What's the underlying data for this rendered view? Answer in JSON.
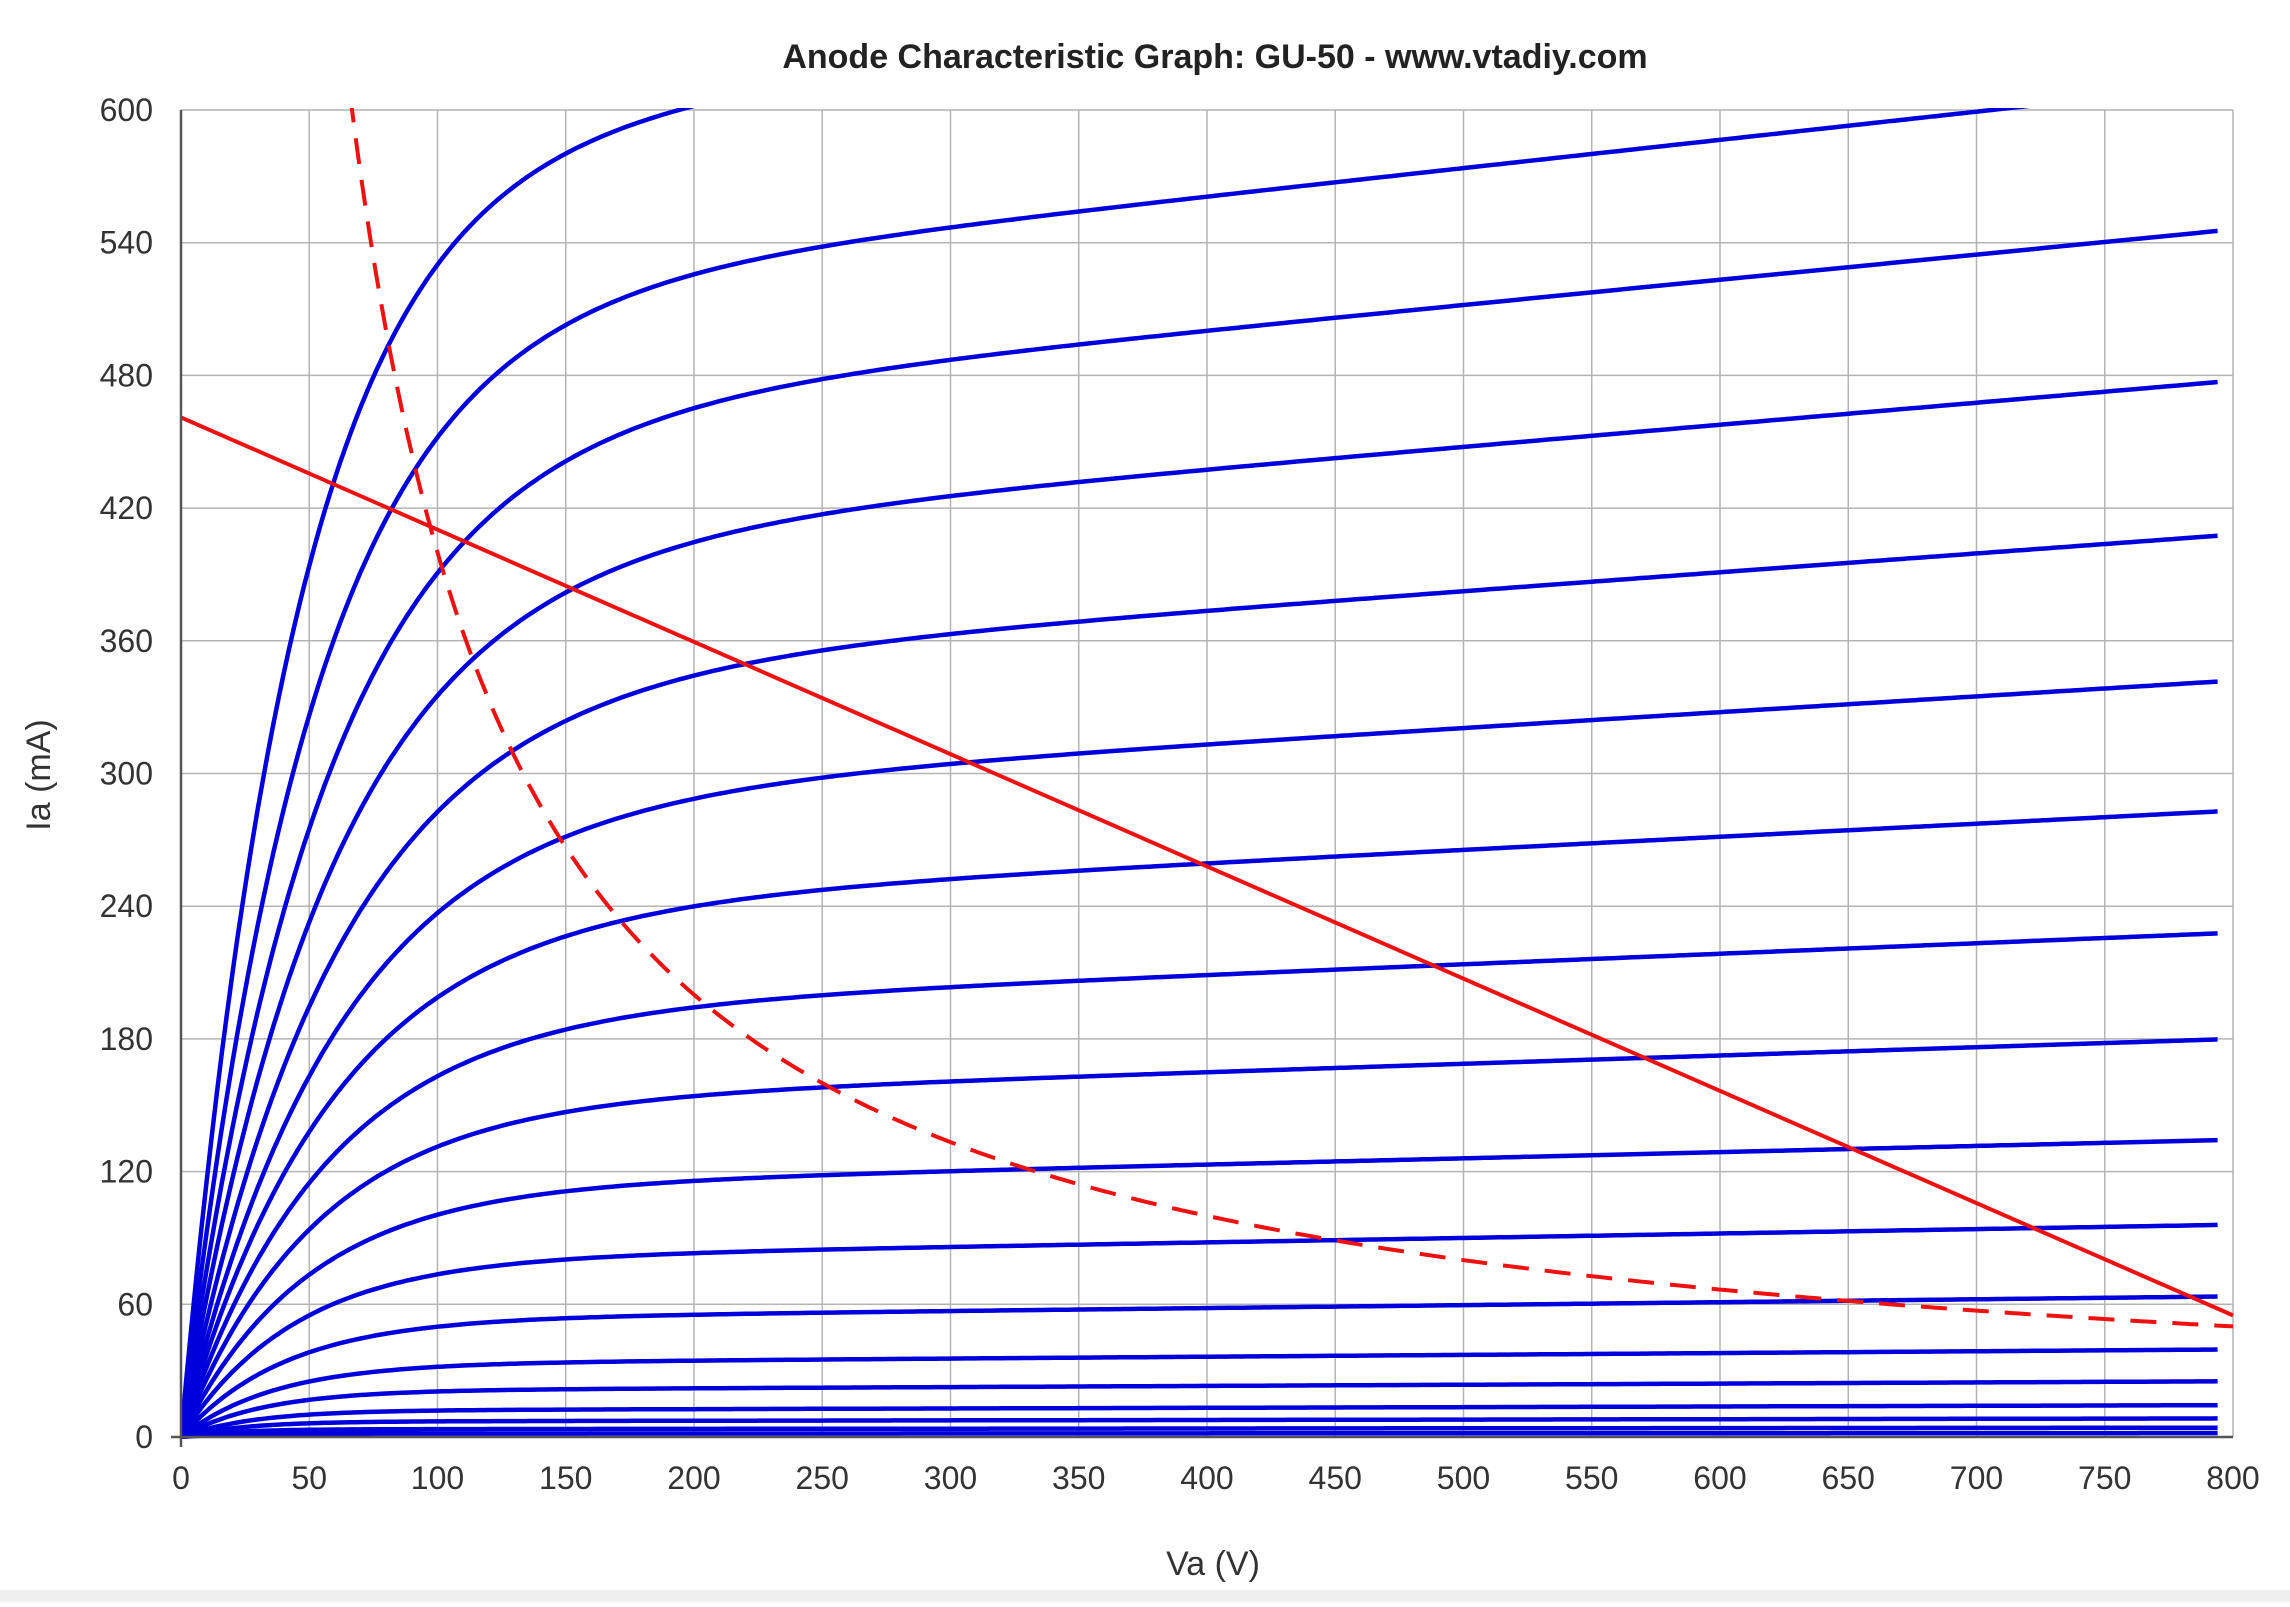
{
  "chart_data": {
    "type": "line",
    "title": "Anode Characteristic Graph: GU-50 - www.vtadiy.com",
    "xlabel": "Va (V)",
    "ylabel": "Ia (mA)",
    "xlim": [
      0,
      800
    ],
    "ylim": [
      0,
      600
    ],
    "xticks": [
      0,
      50,
      100,
      150,
      200,
      250,
      300,
      350,
      400,
      450,
      500,
      550,
      600,
      650,
      700,
      750,
      800
    ],
    "yticks": [
      0,
      60,
      120,
      180,
      240,
      300,
      360,
      420,
      480,
      540,
      600
    ],
    "grid": true,
    "colors": {
      "curves": "#0000dd",
      "load_line": "#ee1111",
      "dissipation": "#ee1111",
      "grid": "#b4b4b4",
      "axis": "#555555"
    },
    "curve_slope": 0.00025,
    "curves": [
      {
        "sat": 580,
        "k": 45
      },
      {
        "sat": 510,
        "k": 50
      },
      {
        "sat": 455,
        "k": 55
      },
      {
        "sat": 398,
        "k": 58
      },
      {
        "sat": 340,
        "k": 60
      },
      {
        "sat": 285,
        "k": 60
      },
      {
        "sat": 236,
        "k": 58
      },
      {
        "sat": 190,
        "k": 55
      },
      {
        "sat": 150,
        "k": 52
      },
      {
        "sat": 112,
        "k": 48
      },
      {
        "sat": 80,
        "k": 44
      },
      {
        "sat": 53,
        "k": 40
      },
      {
        "sat": 33,
        "k": 36
      },
      {
        "sat": 21,
        "k": 32
      },
      {
        "sat": 12,
        "k": 28
      },
      {
        "sat": 7,
        "k": 24
      },
      {
        "sat": 3.5,
        "k": 20
      },
      {
        "sat": 1.5,
        "k": 16
      }
    ],
    "load_line": {
      "points": [
        [
          0,
          461
        ],
        [
          800,
          55
        ]
      ]
    },
    "dissipation_curve": {
      "power_watts": 40,
      "x_range": [
        66,
        800
      ]
    }
  }
}
